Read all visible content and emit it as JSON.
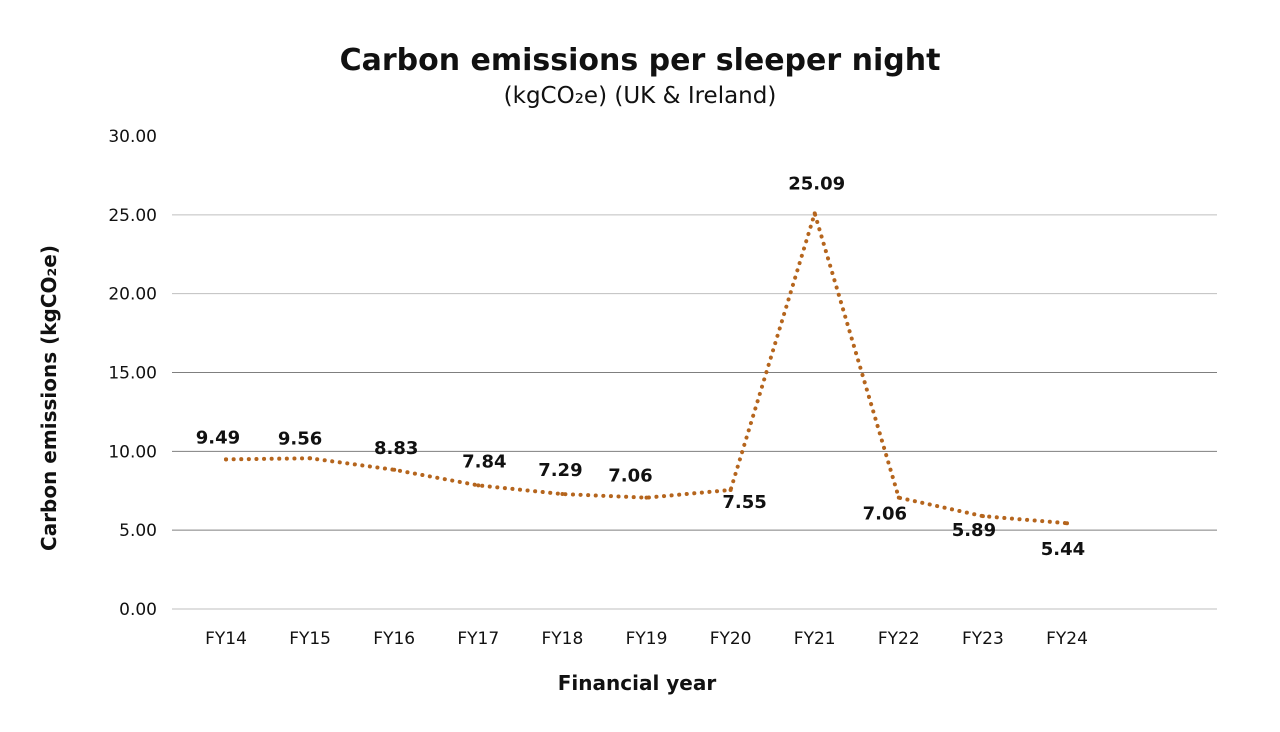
{
  "chart_data": {
    "type": "line",
    "title": "Carbon emissions per sleeper night",
    "subtitle": "(kgCO₂e)  (UK & Ireland)",
    "xlabel": "Financial year",
    "ylabel": "Carbon emissions (kgCO₂e)",
    "ylim": [
      0,
      30
    ],
    "yticks": [
      "0.00",
      "5.00",
      "10.00",
      "15.00",
      "20.00",
      "25.00",
      "30.00"
    ],
    "categories": [
      "FY14",
      "FY15",
      "FY16",
      "FY17",
      "FY18",
      "FY19",
      "FY20",
      "FY21",
      "FY22",
      "FY23",
      "FY24"
    ],
    "series": [
      {
        "values": [
          9.49,
          9.56,
          8.83,
          7.84,
          7.29,
          7.06,
          7.55,
          25.09,
          7.06,
          5.89,
          5.44
        ],
        "labels": [
          "9.49",
          "9.56",
          "8.83",
          "7.84",
          "7.29",
          "7.06",
          "7.55",
          "25.09",
          "7.06",
          "5.89",
          "5.44"
        ],
        "color": "#b5651d",
        "line_style": "dotted"
      }
    ],
    "grid": true,
    "legend": "none"
  }
}
